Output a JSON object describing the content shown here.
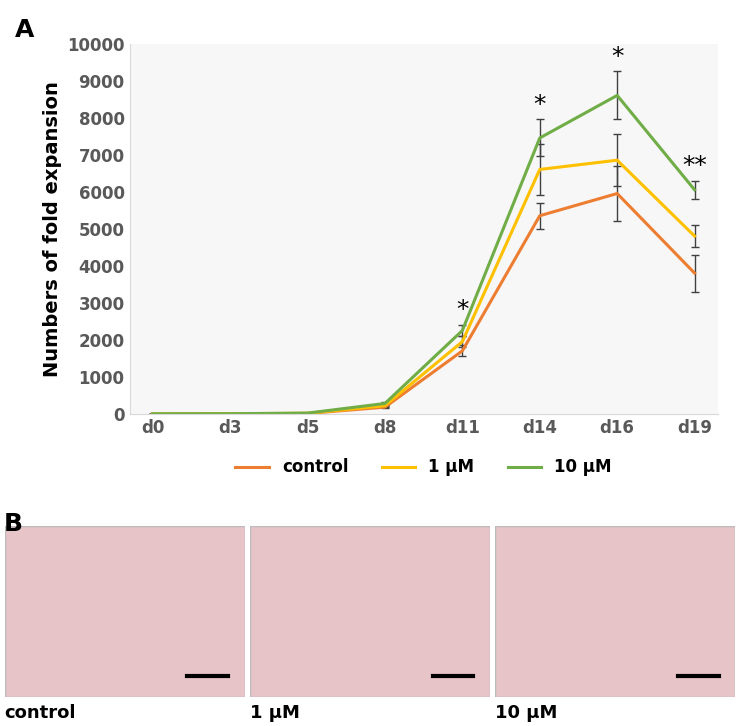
{
  "chart_data": {
    "type": "line",
    "panel_label": "A",
    "y_label": "Numbers of fold expansion",
    "categories": [
      "d0",
      "d3",
      "d5",
      "d8",
      "d11",
      "d14",
      "d16",
      "d19"
    ],
    "series": [
      {
        "name": "control",
        "color": "#ED7D31",
        "values": [
          1,
          2,
          10,
          180,
          1700,
          5350,
          5950,
          3800
        ],
        "errors": [
          0,
          0,
          2,
          30,
          150,
          350,
          750,
          500
        ]
      },
      {
        "name": "1 μM",
        "color": "#FFC000",
        "values": [
          1,
          3,
          15,
          220,
          1950,
          6600,
          6850,
          4800
        ],
        "errors": [
          0,
          0,
          3,
          30,
          150,
          700,
          700,
          300
        ]
      },
      {
        "name": "10 μM",
        "color": "#70AD47",
        "values": [
          1,
          3,
          20,
          280,
          2250,
          7450,
          8600,
          6050
        ],
        "errors": [
          0,
          0,
          4,
          30,
          150,
          500,
          650,
          250
        ]
      }
    ],
    "annotations": [
      {
        "category": "d11",
        "text": "*"
      },
      {
        "category": "d14",
        "text": "*"
      },
      {
        "category": "d16",
        "text": "*"
      },
      {
        "category": "d19",
        "text": "**"
      }
    ],
    "ylim": [
      0,
      10000
    ],
    "yticks": [
      0,
      1000,
      2000,
      3000,
      4000,
      5000,
      6000,
      7000,
      8000,
      9000,
      10000
    ],
    "grid": false,
    "legend": "upper center"
  },
  "panel_b": {
    "panel_label": "B",
    "images": [
      "control",
      "1 μM",
      "10 μM"
    ]
  }
}
